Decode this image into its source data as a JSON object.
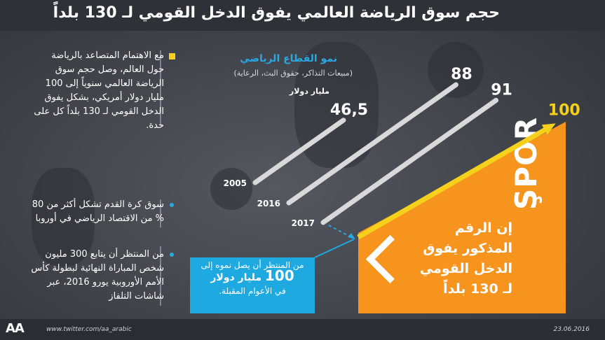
{
  "title": "حجم سوق الرياضة العالمي يفوق الدخل القومي لـ 130 بلداً",
  "left_column": {
    "p1": "مع الاهتمام المتصاعد بالرياضة حول العالم، وصل حجم سوق الرياضة العالمي سنوياً إلى 100 مليار دولار أمريكي، بشكل يفوق الدخل القومي لـ 130 بلداً كل على حدة.",
    "p2": "سوق كرة القدم تشكل أكثر من 80 % من الاقتصاد الرياضي في أوروبا",
    "p3": "من المنتظر أن يتابع 300 مليون شخص المباراة النهائية لبطولة كأس الأمم الأوروبية يورو 2016، عبر شاشات التلفاز"
  },
  "chart_data": {
    "type": "bar",
    "title": "نمو القطاع الرياضي",
    "subtitle": "(مبيعات التذاكر، حقوق البث، الرعاية)",
    "unit": "مليار دولار",
    "categories": [
      "2005",
      "2016",
      "2017"
    ],
    "values": [
      46.5,
      88,
      91
    ],
    "value_labels": [
      "46,5",
      "88",
      "91"
    ],
    "projection": {
      "value": 100,
      "label": "100"
    },
    "colors": {
      "bars": "#d9d9d9",
      "projection": "#f6d11b",
      "accent": "#f7941d",
      "highlight": "#2aa8e0"
    }
  },
  "projection_panel": {
    "spor": "ŞPOR",
    "line1": "إن الرقم",
    "line2": "المذكور يفوق",
    "line3": "الدخل القومي",
    "line4": "لـ 130 بلداً"
  },
  "blue_box": {
    "line1": "من المنتظر أن يصل نموه إلى",
    "line2_num": "100",
    "line2_text": "مليار دولار",
    "line3": "في الأعوام المقبلة."
  },
  "footer": {
    "logo": "AA",
    "url": "www.twitter.com/aa_arabic",
    "date": "23.06.2016"
  }
}
